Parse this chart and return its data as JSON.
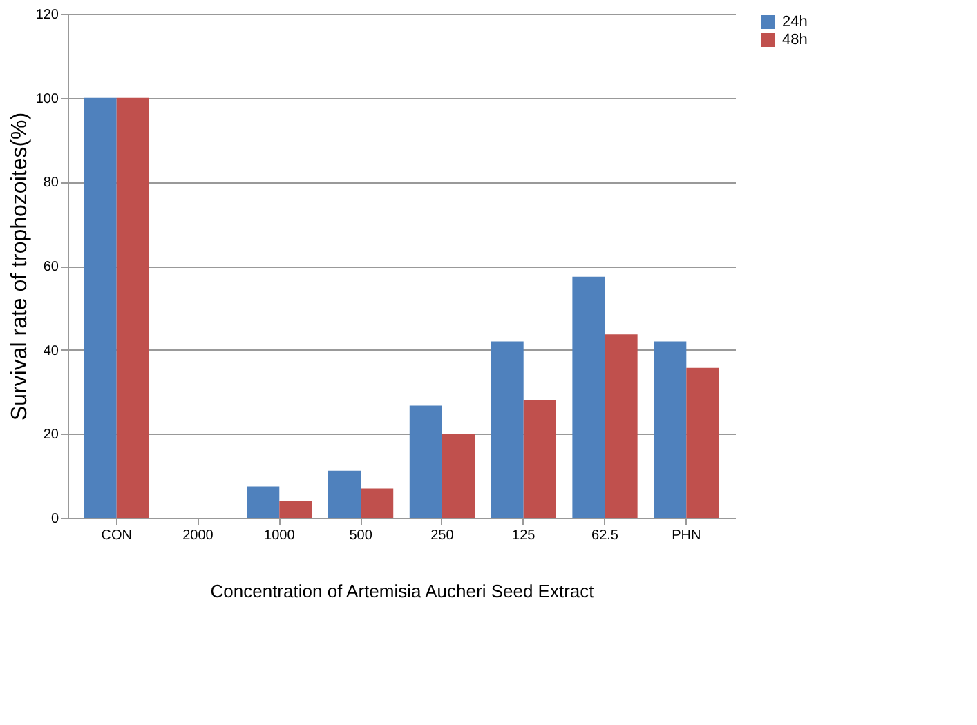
{
  "chart_data": {
    "type": "bar",
    "xlabel": "Concentration of Artemisia Aucheri Seed Extract",
    "ylabel": "Survival rate of trophozoites(%)",
    "categories": [
      "CON",
      "2000",
      "1000",
      "500",
      "250",
      "125",
      "62.5",
      "PHN"
    ],
    "series": [
      {
        "name": "24h",
        "color": "#4f81bd",
        "values": [
          100,
          0,
          7.5,
          11.2,
          26.7,
          42,
          57.4,
          42
        ]
      },
      {
        "name": "48h",
        "color": "#c0504d",
        "values": [
          100,
          0,
          4,
          7,
          20,
          28,
          43.7,
          35.7
        ]
      }
    ],
    "ylim": [
      0,
      120
    ],
    "yticks": [
      0,
      20,
      40,
      60,
      80,
      100,
      120
    ],
    "grid": "y",
    "legend": "right"
  }
}
